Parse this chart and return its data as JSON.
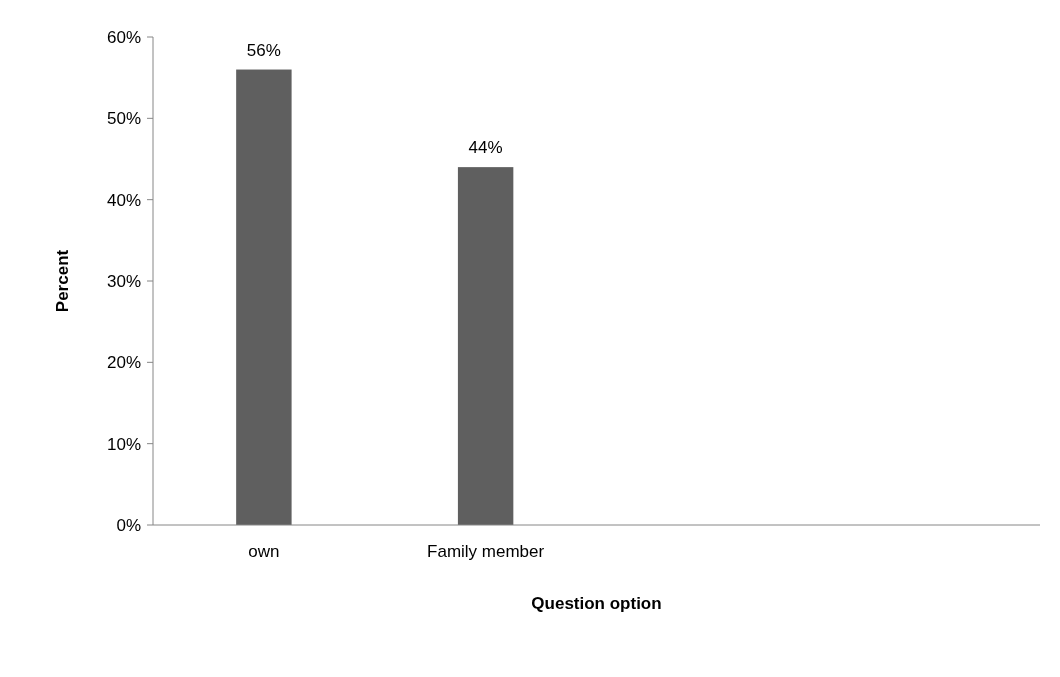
{
  "chart_data": {
    "type": "bar",
    "xlabel": "Question option",
    "ylabel": "Percent",
    "categories": [
      "own",
      "Family member",
      null,
      null
    ],
    "values": [
      56,
      44,
      null,
      null
    ],
    "value_labels": [
      "56%",
      "44%",
      null,
      null
    ],
    "color": "#5f5f5f",
    "ylim": [
      0,
      60
    ],
    "yticks": [
      {
        "value": 0,
        "label": "0%"
      },
      {
        "value": 10,
        "label": "10%"
      },
      {
        "value": 20,
        "label": "20%"
      },
      {
        "value": 30,
        "label": "30%"
      },
      {
        "value": 40,
        "label": "40%"
      },
      {
        "value": 50,
        "label": "50%"
      },
      {
        "value": 60,
        "label": "60%"
      }
    ],
    "grid": false
  }
}
